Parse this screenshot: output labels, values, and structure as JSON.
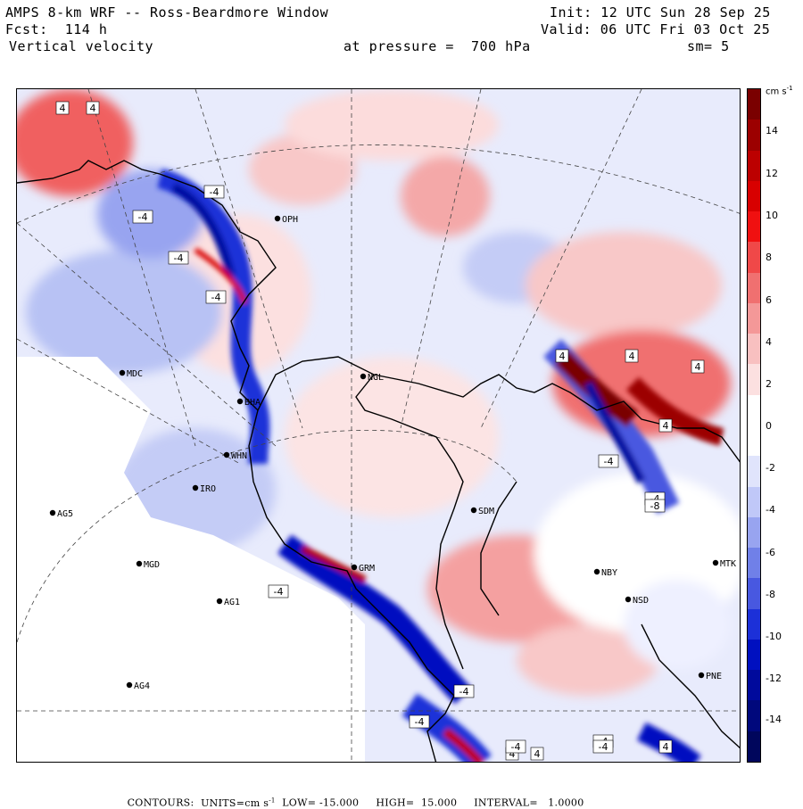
{
  "header": {
    "title": "AMPS 8-km WRF -- Ross-Beardmore Window",
    "init": "Init: 12 UTC Sun 28 Sep 25",
    "forecast": "Fcst:  114 h",
    "valid": "Valid: 06 UTC Fri 03 Oct 25",
    "field": "Vertical velocity",
    "pressure": "at pressure =  700 hPa",
    "smoothing": "sm= 5"
  },
  "colorbar": {
    "units": "cm s",
    "units_exp": "-1",
    "ticks": [
      "14",
      "12",
      "10",
      "8",
      "6",
      "4",
      "2",
      "0",
      "-2",
      "-4",
      "-6",
      "-8",
      "-10",
      "-12",
      "-14"
    ],
    "colors": [
      "#7a0000",
      "#9c0000",
      "#bc0000",
      "#d80000",
      "#f01010",
      "#f04848",
      "#f07070",
      "#f49898",
      "#f8c0c0",
      "#fce0e0",
      "#ffffff",
      "#ffffff",
      "#e0e4fc",
      "#c0c8f8",
      "#98a4f0",
      "#7080e8",
      "#4858e0",
      "#1c30d8",
      "#0010c0",
      "#000a9c",
      "#00087c",
      "#00065c"
    ]
  },
  "footer": {
    "contours_label": "CONTOURS:",
    "units_label": "UNITS=cm s",
    "units_exp": "-1",
    "low": "LOW= -15.000",
    "high": "HIGH=  15.000",
    "interval": "INTERVAL=   1.0000"
  },
  "stations": [
    {
      "id": "MDC",
      "name": "MDC"
    },
    {
      "id": "NGL",
      "name": "NGL"
    },
    {
      "id": "IRO",
      "name": "IRO"
    },
    {
      "id": "AG5",
      "name": "AG5"
    },
    {
      "id": "SDM",
      "name": "SDM"
    },
    {
      "id": "MGD",
      "name": "MGD"
    },
    {
      "id": "AG1",
      "name": "AG1"
    },
    {
      "id": "NBY",
      "name": "NBY"
    },
    {
      "id": "MTK",
      "name": "MTK"
    },
    {
      "id": "NSD",
      "name": "NSD"
    },
    {
      "id": "AG4",
      "name": "AG4"
    },
    {
      "id": "PNE",
      "name": "PNE"
    },
    {
      "id": "OPH",
      "name": "OPH"
    },
    {
      "id": "WHN",
      "name": "WHN"
    },
    {
      "id": "GRM",
      "name": "GRM"
    },
    {
      "id": "BHA",
      "name": "BHA"
    }
  ],
  "contour_labels": [
    "4",
    "4",
    "-4",
    "-4",
    "-4",
    "-4",
    "4",
    "4",
    "4",
    "4",
    "-4",
    "-4",
    "-8",
    "-4",
    "-4",
    "4",
    "-4",
    "-4",
    "4",
    "-4",
    "4",
    "-4"
  ]
}
